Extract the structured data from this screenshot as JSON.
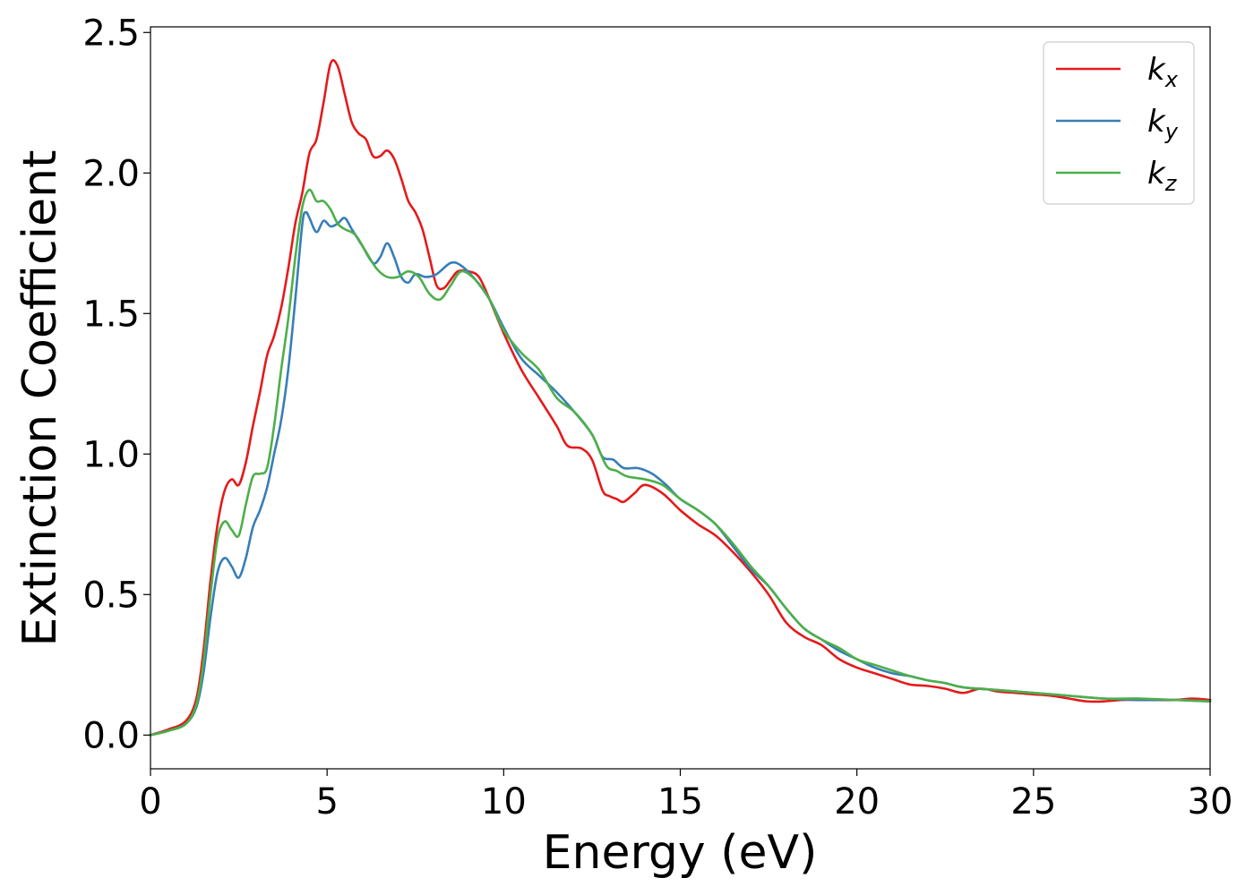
{
  "chart_data": {
    "type": "line",
    "title": "",
    "xlabel": "Energy (eV)",
    "ylabel": "Extinction Coefficient",
    "xlim": [
      0,
      30
    ],
    "ylim": [
      -0.12,
      2.52
    ],
    "xticks": [
      0,
      5,
      10,
      15,
      20,
      25,
      30
    ],
    "xtick_labels": [
      "0",
      "5",
      "10",
      "15",
      "20",
      "25",
      "30"
    ],
    "yticks": [
      0.0,
      0.5,
      1.0,
      1.5,
      2.0,
      2.5
    ],
    "ytick_labels": [
      "0.0",
      "0.5",
      "1.0",
      "1.5",
      "2.0",
      "2.5"
    ],
    "grid": false,
    "legend_position": "top-right",
    "series": [
      {
        "name": "k_x",
        "label_main": "k",
        "label_sub": "x",
        "color": "#e41a1c",
        "points": [
          [
            0,
            0.0
          ],
          [
            0.5,
            0.02
          ],
          [
            1.0,
            0.05
          ],
          [
            1.3,
            0.13
          ],
          [
            1.5,
            0.3
          ],
          [
            1.7,
            0.55
          ],
          [
            1.9,
            0.75
          ],
          [
            2.1,
            0.87
          ],
          [
            2.3,
            0.91
          ],
          [
            2.5,
            0.89
          ],
          [
            2.7,
            0.97
          ],
          [
            2.9,
            1.1
          ],
          [
            3.1,
            1.22
          ],
          [
            3.3,
            1.35
          ],
          [
            3.5,
            1.42
          ],
          [
            3.7,
            1.52
          ],
          [
            3.9,
            1.66
          ],
          [
            4.1,
            1.82
          ],
          [
            4.3,
            1.93
          ],
          [
            4.5,
            2.07
          ],
          [
            4.7,
            2.12
          ],
          [
            4.9,
            2.25
          ],
          [
            5.1,
            2.39
          ],
          [
            5.3,
            2.38
          ],
          [
            5.5,
            2.28
          ],
          [
            5.7,
            2.18
          ],
          [
            5.9,
            2.14
          ],
          [
            6.1,
            2.12
          ],
          [
            6.3,
            2.06
          ],
          [
            6.5,
            2.06
          ],
          [
            6.7,
            2.08
          ],
          [
            6.9,
            2.05
          ],
          [
            7.1,
            1.98
          ],
          [
            7.3,
            1.9
          ],
          [
            7.5,
            1.86
          ],
          [
            7.7,
            1.8
          ],
          [
            7.9,
            1.7
          ],
          [
            8.1,
            1.6
          ],
          [
            8.3,
            1.59
          ],
          [
            8.5,
            1.62
          ],
          [
            8.7,
            1.65
          ],
          [
            9.0,
            1.65
          ],
          [
            9.3,
            1.63
          ],
          [
            9.6,
            1.55
          ],
          [
            10.0,
            1.43
          ],
          [
            10.5,
            1.3
          ],
          [
            11.0,
            1.2
          ],
          [
            11.5,
            1.1
          ],
          [
            11.8,
            1.03
          ],
          [
            12.2,
            1.02
          ],
          [
            12.5,
            0.98
          ],
          [
            12.8,
            0.87
          ],
          [
            13.0,
            0.85
          ],
          [
            13.2,
            0.84
          ],
          [
            13.4,
            0.83
          ],
          [
            13.7,
            0.86
          ],
          [
            14.0,
            0.89
          ],
          [
            14.5,
            0.86
          ],
          [
            15.0,
            0.8
          ],
          [
            15.5,
            0.75
          ],
          [
            16.0,
            0.71
          ],
          [
            16.5,
            0.65
          ],
          [
            17.0,
            0.58
          ],
          [
            17.5,
            0.5
          ],
          [
            18.0,
            0.4
          ],
          [
            18.5,
            0.35
          ],
          [
            19.0,
            0.32
          ],
          [
            19.5,
            0.27
          ],
          [
            20.0,
            0.24
          ],
          [
            20.5,
            0.22
          ],
          [
            21.0,
            0.2
          ],
          [
            21.5,
            0.18
          ],
          [
            22.0,
            0.175
          ],
          [
            22.5,
            0.165
          ],
          [
            23.0,
            0.15
          ],
          [
            23.5,
            0.165
          ],
          [
            24.0,
            0.155
          ],
          [
            24.5,
            0.15
          ],
          [
            25.0,
            0.145
          ],
          [
            25.5,
            0.14
          ],
          [
            26.0,
            0.13
          ],
          [
            26.5,
            0.12
          ],
          [
            27.0,
            0.12
          ],
          [
            27.5,
            0.125
          ],
          [
            28.0,
            0.125
          ],
          [
            29.0,
            0.125
          ],
          [
            29.5,
            0.13
          ],
          [
            30.0,
            0.125
          ]
        ]
      },
      {
        "name": "k_y",
        "label_main": "k",
        "label_sub": "y",
        "color": "#377eb8",
        "points": [
          [
            0,
            0.0
          ],
          [
            0.5,
            0.015
          ],
          [
            1.0,
            0.04
          ],
          [
            1.3,
            0.1
          ],
          [
            1.5,
            0.22
          ],
          [
            1.7,
            0.42
          ],
          [
            1.9,
            0.58
          ],
          [
            2.1,
            0.63
          ],
          [
            2.3,
            0.6
          ],
          [
            2.5,
            0.56
          ],
          [
            2.7,
            0.63
          ],
          [
            2.9,
            0.74
          ],
          [
            3.1,
            0.8
          ],
          [
            3.3,
            0.88
          ],
          [
            3.5,
            1.0
          ],
          [
            3.7,
            1.12
          ],
          [
            3.9,
            1.3
          ],
          [
            4.1,
            1.55
          ],
          [
            4.3,
            1.82
          ],
          [
            4.4,
            1.86
          ],
          [
            4.5,
            1.84
          ],
          [
            4.7,
            1.79
          ],
          [
            4.9,
            1.83
          ],
          [
            5.1,
            1.81
          ],
          [
            5.3,
            1.82
          ],
          [
            5.5,
            1.84
          ],
          [
            5.7,
            1.8
          ],
          [
            6.0,
            1.74
          ],
          [
            6.3,
            1.68
          ],
          [
            6.5,
            1.7
          ],
          [
            6.7,
            1.75
          ],
          [
            6.9,
            1.7
          ],
          [
            7.1,
            1.63
          ],
          [
            7.3,
            1.61
          ],
          [
            7.5,
            1.64
          ],
          [
            7.8,
            1.63
          ],
          [
            8.1,
            1.64
          ],
          [
            8.5,
            1.68
          ],
          [
            8.8,
            1.67
          ],
          [
            9.2,
            1.62
          ],
          [
            9.6,
            1.55
          ],
          [
            10.0,
            1.45
          ],
          [
            10.5,
            1.34
          ],
          [
            11.0,
            1.28
          ],
          [
            11.5,
            1.22
          ],
          [
            12.0,
            1.15
          ],
          [
            12.5,
            1.07
          ],
          [
            12.8,
            0.99
          ],
          [
            13.1,
            0.98
          ],
          [
            13.4,
            0.95
          ],
          [
            13.8,
            0.95
          ],
          [
            14.2,
            0.93
          ],
          [
            14.6,
            0.89
          ],
          [
            15.0,
            0.84
          ],
          [
            15.5,
            0.8
          ],
          [
            16.0,
            0.75
          ],
          [
            16.5,
            0.67
          ],
          [
            17.0,
            0.59
          ],
          [
            17.5,
            0.53
          ],
          [
            18.0,
            0.45
          ],
          [
            18.5,
            0.38
          ],
          [
            19.0,
            0.34
          ],
          [
            19.5,
            0.3
          ],
          [
            20.0,
            0.27
          ],
          [
            20.5,
            0.24
          ],
          [
            21.0,
            0.22
          ],
          [
            21.5,
            0.21
          ],
          [
            22.0,
            0.195
          ],
          [
            22.5,
            0.185
          ],
          [
            23.0,
            0.17
          ],
          [
            24.0,
            0.16
          ],
          [
            25.0,
            0.15
          ],
          [
            26.0,
            0.14
          ],
          [
            27.0,
            0.13
          ],
          [
            28.0,
            0.125
          ],
          [
            29.0,
            0.125
          ],
          [
            30.0,
            0.12
          ]
        ]
      },
      {
        "name": "k_z",
        "label_main": "k",
        "label_sub": "z",
        "color": "#4daf4a",
        "points": [
          [
            0,
            0.0
          ],
          [
            0.5,
            0.015
          ],
          [
            1.0,
            0.04
          ],
          [
            1.3,
            0.11
          ],
          [
            1.5,
            0.26
          ],
          [
            1.7,
            0.5
          ],
          [
            1.9,
            0.7
          ],
          [
            2.1,
            0.76
          ],
          [
            2.3,
            0.73
          ],
          [
            2.5,
            0.71
          ],
          [
            2.7,
            0.82
          ],
          [
            2.9,
            0.92
          ],
          [
            3.1,
            0.93
          ],
          [
            3.3,
            0.95
          ],
          [
            3.5,
            1.1
          ],
          [
            3.7,
            1.3
          ],
          [
            3.9,
            1.48
          ],
          [
            4.1,
            1.7
          ],
          [
            4.3,
            1.88
          ],
          [
            4.5,
            1.94
          ],
          [
            4.7,
            1.9
          ],
          [
            4.9,
            1.9
          ],
          [
            5.1,
            1.87
          ],
          [
            5.3,
            1.82
          ],
          [
            5.5,
            1.8
          ],
          [
            5.8,
            1.78
          ],
          [
            6.1,
            1.72
          ],
          [
            6.4,
            1.66
          ],
          [
            6.7,
            1.63
          ],
          [
            7.0,
            1.63
          ],
          [
            7.3,
            1.65
          ],
          [
            7.6,
            1.63
          ],
          [
            7.9,
            1.57
          ],
          [
            8.2,
            1.55
          ],
          [
            8.5,
            1.6
          ],
          [
            8.8,
            1.65
          ],
          [
            9.2,
            1.62
          ],
          [
            9.6,
            1.55
          ],
          [
            10.0,
            1.44
          ],
          [
            10.5,
            1.36
          ],
          [
            11.0,
            1.3
          ],
          [
            11.5,
            1.2
          ],
          [
            12.0,
            1.15
          ],
          [
            12.5,
            1.07
          ],
          [
            12.9,
            0.96
          ],
          [
            13.2,
            0.94
          ],
          [
            13.5,
            0.92
          ],
          [
            14.0,
            0.91
          ],
          [
            14.5,
            0.89
          ],
          [
            15.0,
            0.84
          ],
          [
            15.5,
            0.8
          ],
          [
            16.0,
            0.75
          ],
          [
            16.5,
            0.68
          ],
          [
            17.0,
            0.6
          ],
          [
            17.5,
            0.53
          ],
          [
            18.0,
            0.45
          ],
          [
            18.5,
            0.38
          ],
          [
            19.0,
            0.34
          ],
          [
            19.5,
            0.31
          ],
          [
            20.0,
            0.27
          ],
          [
            20.5,
            0.25
          ],
          [
            21.0,
            0.23
          ],
          [
            21.5,
            0.21
          ],
          [
            22.0,
            0.195
          ],
          [
            22.5,
            0.185
          ],
          [
            23.0,
            0.17
          ],
          [
            24.0,
            0.16
          ],
          [
            25.0,
            0.15
          ],
          [
            26.0,
            0.14
          ],
          [
            27.0,
            0.13
          ],
          [
            28.0,
            0.13
          ],
          [
            29.0,
            0.125
          ],
          [
            30.0,
            0.12
          ]
        ]
      }
    ]
  }
}
